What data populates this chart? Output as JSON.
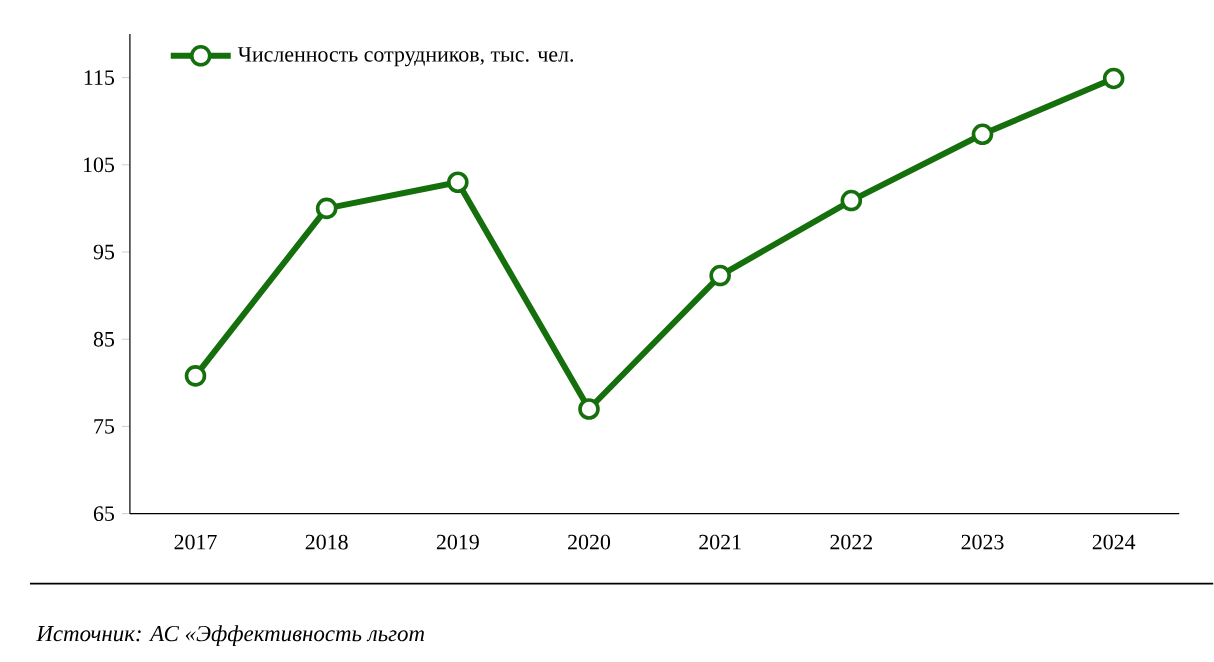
{
  "chart_data": {
    "type": "line",
    "categories": [
      "2017",
      "2018",
      "2019",
      "2020",
      "2021",
      "2022",
      "2023",
      "2024"
    ],
    "series": [
      {
        "name": "Численность сотрудников, тыс. чел.",
        "color": "#156f0c",
        "values": [
          80.8,
          100.0,
          103.0,
          77.0,
          92.3,
          100.9,
          108.5,
          114.9
        ]
      }
    ],
    "ylim": [
      65,
      120
    ],
    "yticks": [
      65,
      75,
      85,
      95,
      105,
      115
    ],
    "grid": false,
    "legend": "top left",
    "marker": "circle",
    "line_style": "solid",
    "annotations": [
      "Источник: АС «Эффективность льгот"
    ]
  }
}
